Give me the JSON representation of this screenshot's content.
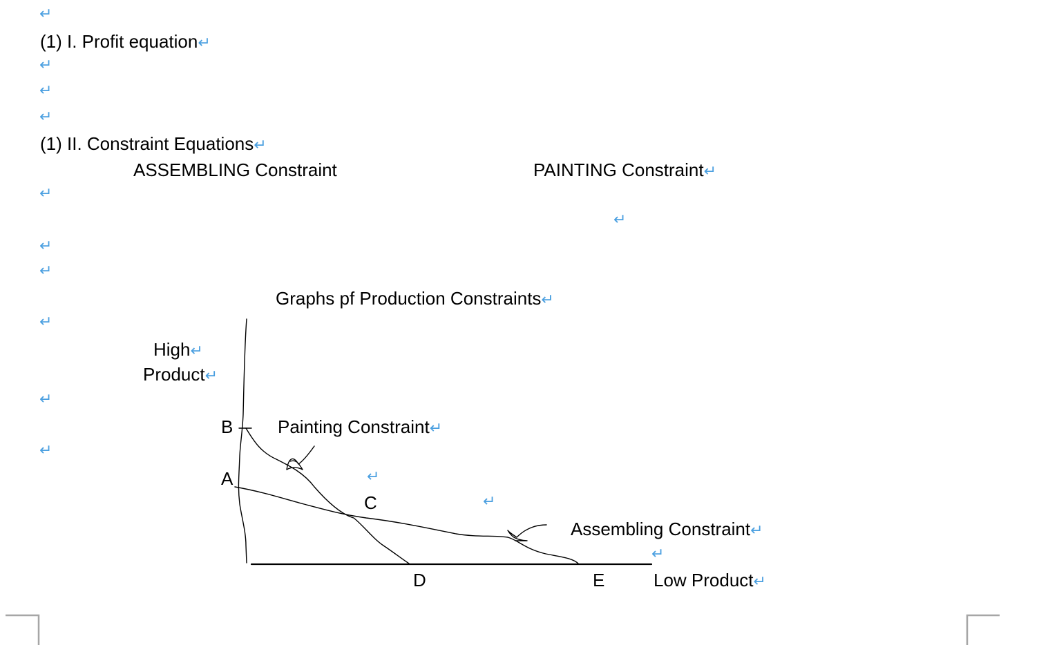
{
  "document": {
    "para_mark": "↵",
    "profit_heading": "(1)  I.   Profit equation",
    "constraint_heading": "(1)  II.  Constraint Equations",
    "assembling_label": "ASSEMBLING Constraint",
    "painting_label": "PAINTING Constraint"
  },
  "graph": {
    "title": "Graphs pf Production Constraints",
    "y_axis_label_line1": "High",
    "y_axis_label_line2": "Product",
    "x_axis_label": "Low Product",
    "painting_curve_label": "Painting Constraint",
    "assembling_curve_label": "Assembling Constraint",
    "point_labels": {
      "a": "A",
      "b": "B",
      "c": "C",
      "d": "D",
      "e": "E"
    }
  },
  "colors": {
    "para_mark": "#4a9fe0",
    "text": "#000000",
    "page_corner": "#a6a6a6"
  }
}
